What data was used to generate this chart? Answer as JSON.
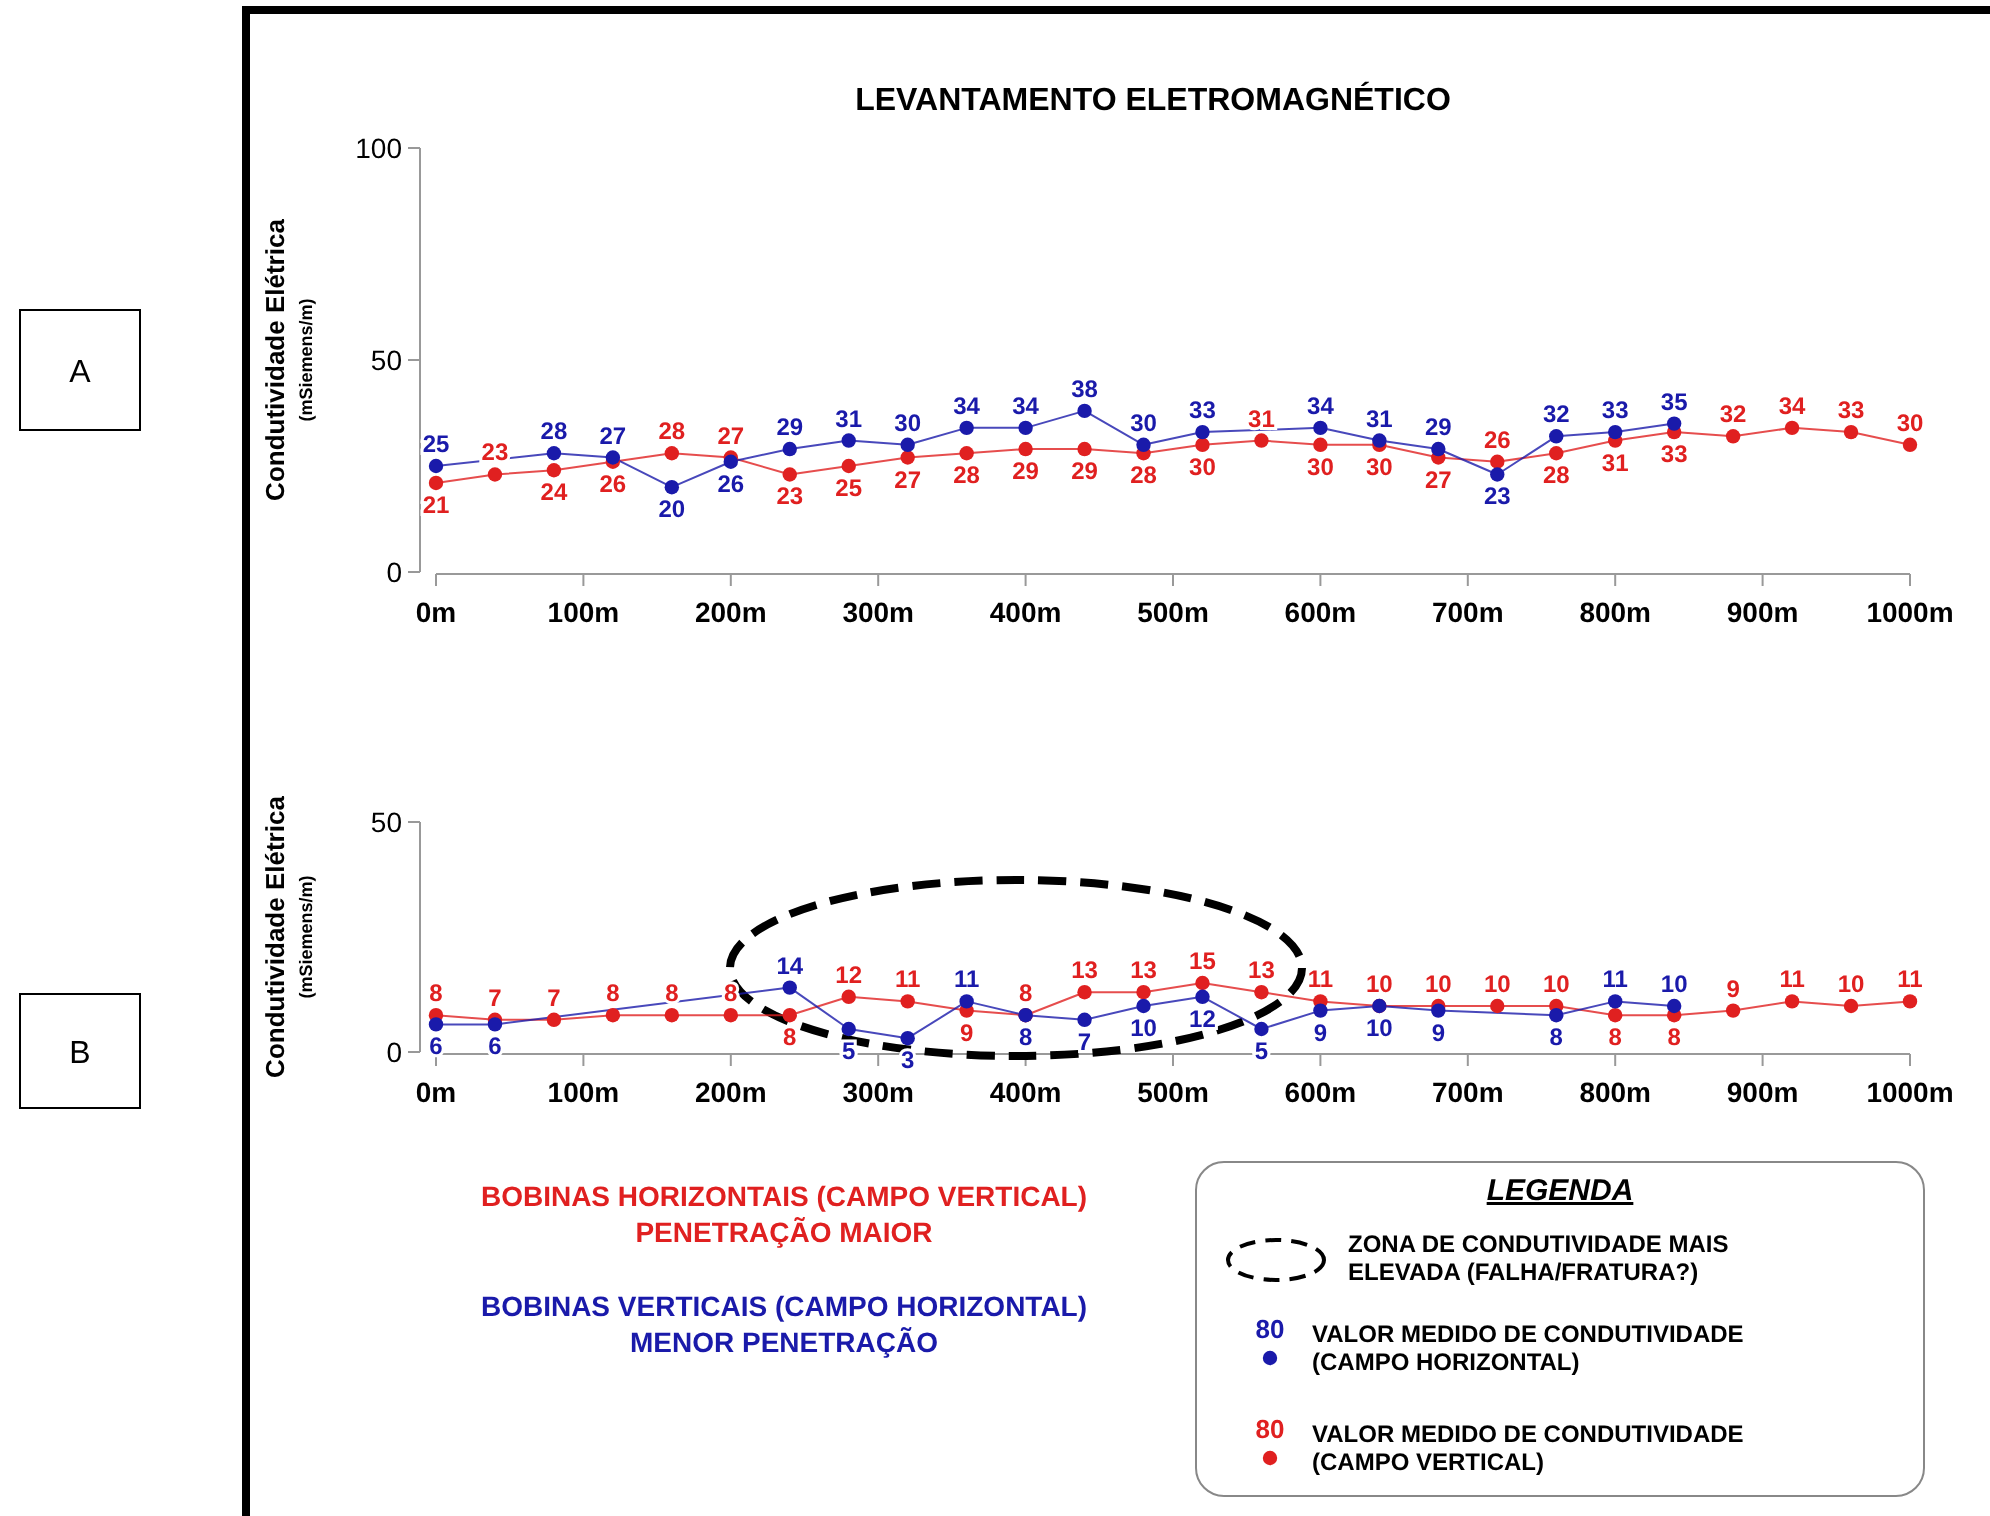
{
  "chart_data": [
    {
      "type": "line",
      "title": "LEVANTAMENTO ELETROMAGNÉTICO",
      "ylabel": "Condutividade Elétrica\n(mSiemens/m)",
      "x": [
        0,
        40,
        80,
        120,
        160,
        200,
        240,
        280,
        320,
        360,
        400,
        440,
        480,
        520,
        560,
        600,
        640,
        680,
        720,
        760,
        800,
        840,
        880,
        920,
        960,
        1000
      ],
      "xlim": [
        0,
        1000
      ],
      "xticks": [
        {
          "value": 0,
          "label": "0m"
        },
        {
          "value": 100,
          "label": "100m"
        },
        {
          "value": 200,
          "label": "200m"
        },
        {
          "value": 300,
          "label": "300m"
        },
        {
          "value": 400,
          "label": "400m"
        },
        {
          "value": 500,
          "label": "500m"
        },
        {
          "value": 600,
          "label": "600m"
        },
        {
          "value": 700,
          "label": "700m"
        },
        {
          "value": 800,
          "label": "800m"
        },
        {
          "value": 900,
          "label": "900m"
        },
        {
          "value": 1000,
          "label": "1000m"
        }
      ],
      "ylim": [
        0,
        100
      ],
      "yticks": [
        0,
        50,
        100
      ],
      "marker": "circle",
      "data_labels": true,
      "annotations": [
        "A"
      ],
      "series": [
        {
          "color": "#e02020",
          "values": [
            21,
            23,
            24,
            26,
            28,
            27,
            23,
            25,
            27,
            28,
            29,
            29,
            28,
            30,
            31,
            30,
            30,
            27,
            26,
            28,
            31,
            33,
            32,
            34,
            33,
            30
          ]
        },
        {
          "color": "#1a1aaa",
          "x": [
            0,
            80,
            120,
            160,
            200,
            240,
            280,
            320,
            360,
            400,
            440,
            480,
            520,
            600,
            640,
            680,
            720,
            760,
            800,
            840
          ],
          "values": [
            25,
            28,
            27,
            20,
            26,
            29,
            31,
            30,
            34,
            34,
            38,
            30,
            33,
            34,
            31,
            29,
            23,
            32,
            33,
            35
          ]
        }
      ]
    },
    {
      "type": "line",
      "ylabel": "Condutividade Elétrica\n(mSiemens/m)",
      "x": [
        0,
        40,
        80,
        120,
        160,
        200,
        240,
        280,
        320,
        360,
        400,
        440,
        480,
        520,
        560,
        600,
        640,
        680,
        720,
        760,
        800,
        840,
        880,
        920,
        960,
        1000
      ],
      "xlim": [
        0,
        1000
      ],
      "xticks": [
        {
          "value": 0,
          "label": "0m"
        },
        {
          "value": 100,
          "label": "100m"
        },
        {
          "value": 200,
          "label": "200m"
        },
        {
          "value": 300,
          "label": "300m"
        },
        {
          "value": 400,
          "label": "400m"
        },
        {
          "value": 500,
          "label": "500m"
        },
        {
          "value": 600,
          "label": "600m"
        },
        {
          "value": 700,
          "label": "700m"
        },
        {
          "value": 800,
          "label": "800m"
        },
        {
          "value": 900,
          "label": "900m"
        },
        {
          "value": 1000,
          "label": "1000m"
        }
      ],
      "ylim": [
        0,
        50
      ],
      "yticks": [
        0,
        50
      ],
      "marker": "circle",
      "data_labels": true,
      "legend": "bottom right",
      "legend_title": "LEGENDA",
      "annotations": [
        "B",
        "BOBINAS HORIZONTAIS (CAMPO VERTICAL)\nPENETRAÇÃO MAIOR",
        "BOBINAS VERTICAIS (CAMPO HORIZONTAL)\nMENOR PENETRAÇÃO",
        "80",
        "ZONA DE CONDUTIVIDADE MAIS ELEVADA (FALHA/FRATURA?)"
      ],
      "series": [
        {
          "name": "VALOR MEDIDO DE CONDUTIVIDADE (CAMPO VERTICAL)",
          "color": "#e02020",
          "values": [
            8,
            7,
            7,
            8,
            8,
            8,
            8,
            12,
            11,
            9,
            8,
            13,
            13,
            15,
            13,
            11,
            10,
            10,
            10,
            10,
            8,
            8,
            9,
            11,
            10,
            11
          ]
        },
        {
          "name": "VALOR MEDIDO DE CONDUTIVIDADE (CAMPO HORIZONTAL)",
          "color": "#1a1aaa",
          "x": [
            0,
            40,
            240,
            280,
            320,
            360,
            400,
            440,
            480,
            520,
            560,
            600,
            640,
            680,
            760,
            800,
            840
          ],
          "values": [
            6,
            6,
            14,
            5,
            3,
            11,
            8,
            7,
            10,
            12,
            5,
            9,
            10,
            9,
            8,
            11,
            10
          ]
        }
      ]
    }
  ]
}
